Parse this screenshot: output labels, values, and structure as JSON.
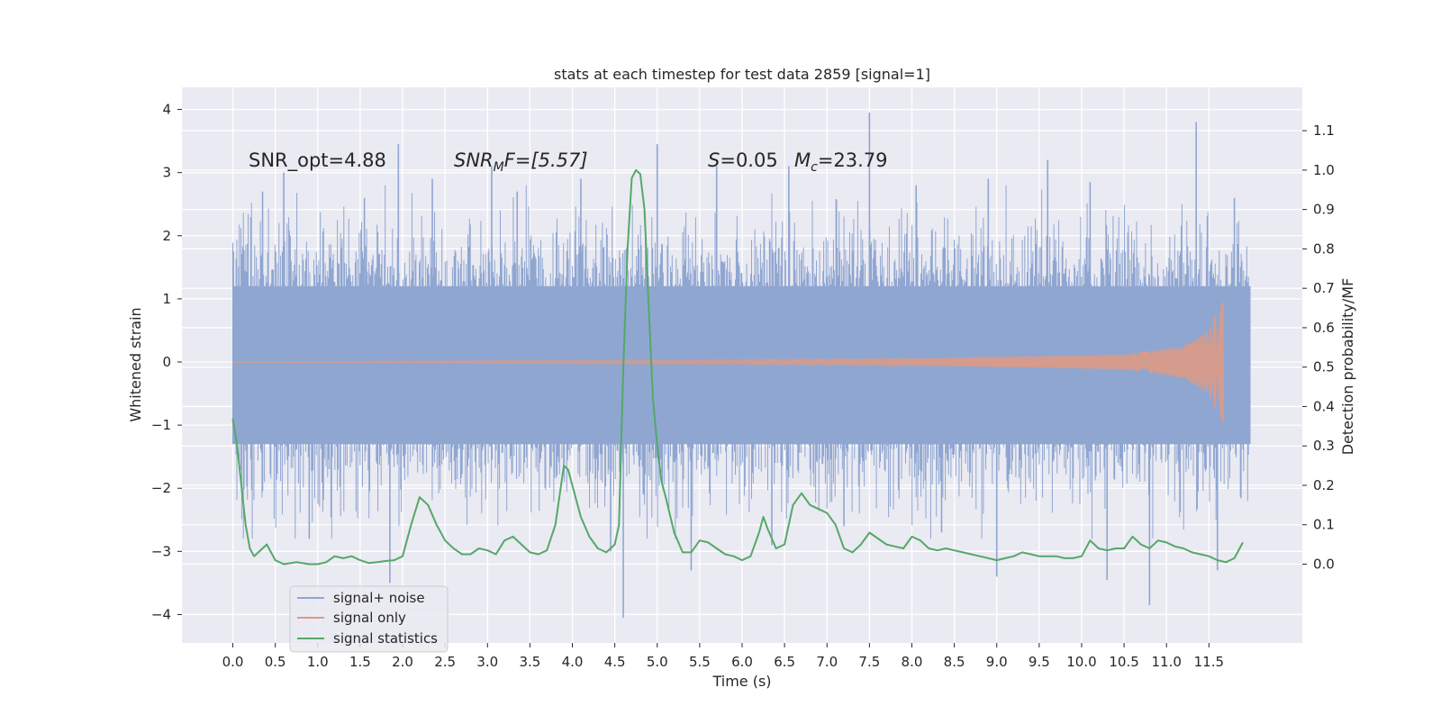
{
  "chart_data": {
    "type": "line",
    "title": "stats at each timestep for test data 2859 [signal=1]",
    "xlabel": "Time (s)",
    "ylabel_left": "Whitened strain",
    "ylabel_right": "Detection probability/MF",
    "xlim": [
      -0.6,
      12.6
    ],
    "ylim_left": [
      -4.45,
      4.35
    ],
    "ylim_right": [
      -0.2,
      1.21
    ],
    "x_ticks": [
      0.0,
      0.5,
      1.0,
      1.5,
      2.0,
      2.5,
      3.0,
      3.5,
      4.0,
      4.5,
      5.0,
      5.5,
      6.0,
      6.5,
      7.0,
      7.5,
      8.0,
      8.5,
      9.0,
      9.5,
      10.0,
      10.5,
      11.0,
      11.5
    ],
    "x_tick_labels": [
      "0.0",
      "0.5",
      "1.0",
      "1.5",
      "2.0",
      "2.5",
      "3.0",
      "3.5",
      "4.0",
      "4.5",
      "5.0",
      "5.5",
      "6.0",
      "6.5",
      "7.0",
      "7.5",
      "8.0",
      "8.5",
      "9.0",
      "9.5",
      "10.0",
      "10.5",
      "11.0",
      "11.5"
    ],
    "y_left_ticks": [
      -4,
      -3,
      -2,
      -1,
      0,
      1,
      2,
      3,
      4
    ],
    "y_left_tick_labels": [
      "−4",
      "−3",
      "−2",
      "−1",
      "0",
      "1",
      "2",
      "3",
      "4"
    ],
    "y_right_ticks": [
      0.0,
      0.1,
      0.2,
      0.3,
      0.4,
      0.5,
      0.6,
      0.7,
      0.8,
      0.9,
      1.0,
      1.1
    ],
    "y_right_tick_labels": [
      "0.0",
      "0.1",
      "0.2",
      "0.3",
      "0.4",
      "0.5",
      "0.6",
      "0.7",
      "0.8",
      "0.9",
      "1.0",
      "1.1"
    ],
    "grid": true,
    "legend_position": "lower-left",
    "annotations": [
      {
        "id": "snr-opt",
        "text": "SNR_opt=4.88"
      },
      {
        "id": "snr-mf",
        "base": "SNR",
        "sub": "M",
        "rest": "F=[5.57]"
      },
      {
        "id": "s-val",
        "base": "S",
        "rest": "=0.05"
      },
      {
        "id": "mc-val",
        "base": "M",
        "sub": "c",
        "rest": "=23.79"
      }
    ],
    "series": [
      {
        "name": "signal+ noise",
        "axis": "left",
        "color": "#8fa6d1",
        "t_range": [
          0.0,
          11.99
        ],
        "band_core": [
          -1.3,
          1.2
        ],
        "typical_extremes": [
          -2.4,
          2.4
        ],
        "spikes": [
          {
            "x": 0.35,
            "y": 2.7
          },
          {
            "x": 0.6,
            "y": 3.0
          },
          {
            "x": 0.9,
            "y": -2.8
          },
          {
            "x": 1.55,
            "y": 2.6
          },
          {
            "x": 1.95,
            "y": 3.45
          },
          {
            "x": 1.85,
            "y": -3.5
          },
          {
            "x": 2.35,
            "y": 2.9
          },
          {
            "x": 3.05,
            "y": 3.1
          },
          {
            "x": 3.35,
            "y": 2.7
          },
          {
            "x": 4.1,
            "y": 2.9
          },
          {
            "x": 4.6,
            "y": -4.05
          },
          {
            "x": 4.45,
            "y": -3.0
          },
          {
            "x": 5.0,
            "y": 3.45
          },
          {
            "x": 5.4,
            "y": -3.3
          },
          {
            "x": 5.7,
            "y": 3.1
          },
          {
            "x": 6.55,
            "y": 3.1
          },
          {
            "x": 6.35,
            "y": -2.9
          },
          {
            "x": 7.5,
            "y": 3.95
          },
          {
            "x": 7.2,
            "y": -2.6
          },
          {
            "x": 8.05,
            "y": 2.8
          },
          {
            "x": 8.35,
            "y": -2.7
          },
          {
            "x": 8.9,
            "y": 2.9
          },
          {
            "x": 9.0,
            "y": -3.4
          },
          {
            "x": 9.6,
            "y": 3.2
          },
          {
            "x": 10.1,
            "y": 2.85
          },
          {
            "x": 10.3,
            "y": -3.45
          },
          {
            "x": 10.8,
            "y": -3.85
          },
          {
            "x": 11.35,
            "y": 3.8
          },
          {
            "x": 11.6,
            "y": -3.3
          },
          {
            "x": 11.8,
            "y": 2.6
          }
        ]
      },
      {
        "name": "signal only",
        "axis": "left",
        "color": "#dd9a84",
        "description_points": [
          {
            "x": 0.0,
            "amp": 0.0
          },
          {
            "x": 8.0,
            "amp": 0.05
          },
          {
            "x": 10.5,
            "amp": 0.12
          },
          {
            "x": 11.2,
            "amp": 0.25
          },
          {
            "x": 11.5,
            "amp": 0.5
          },
          {
            "x": 11.65,
            "amp": 1.0
          }
        ],
        "t_end": 11.67
      },
      {
        "name": "signal statistics",
        "axis": "right",
        "color": "#55a868",
        "x": [
          0.0,
          0.05,
          0.1,
          0.15,
          0.2,
          0.25,
          0.3,
          0.4,
          0.5,
          0.6,
          0.75,
          0.9,
          1.0,
          1.1,
          1.2,
          1.3,
          1.4,
          1.5,
          1.6,
          1.7,
          1.8,
          1.9,
          2.0,
          2.1,
          2.2,
          2.3,
          2.4,
          2.5,
          2.6,
          2.7,
          2.8,
          2.9,
          3.0,
          3.1,
          3.2,
          3.3,
          3.4,
          3.5,
          3.6,
          3.7,
          3.8,
          3.9,
          3.95,
          4.0,
          4.1,
          4.2,
          4.3,
          4.4,
          4.5,
          4.55,
          4.6,
          4.65,
          4.7,
          4.75,
          4.8,
          4.85,
          4.9,
          4.95,
          5.0,
          5.05,
          5.1,
          5.2,
          5.3,
          5.4,
          5.5,
          5.6,
          5.7,
          5.8,
          5.9,
          6.0,
          6.1,
          6.2,
          6.25,
          6.3,
          6.4,
          6.5,
          6.6,
          6.7,
          6.8,
          6.9,
          7.0,
          7.1,
          7.2,
          7.3,
          7.4,
          7.5,
          7.6,
          7.7,
          7.8,
          7.9,
          8.0,
          8.1,
          8.2,
          8.3,
          8.4,
          8.5,
          8.6,
          8.7,
          8.8,
          8.9,
          9.0,
          9.1,
          9.2,
          9.3,
          9.4,
          9.5,
          9.6,
          9.7,
          9.8,
          9.9,
          10.0,
          10.1,
          10.2,
          10.3,
          10.4,
          10.5,
          10.6,
          10.7,
          10.8,
          10.9,
          11.0,
          11.1,
          11.2,
          11.3,
          11.4,
          11.5,
          11.6,
          11.7,
          11.8,
          11.9
        ],
        "y": [
          0.37,
          0.3,
          0.2,
          0.1,
          0.04,
          0.02,
          0.03,
          0.05,
          0.01,
          0.0,
          0.005,
          0.0,
          0.0,
          0.005,
          0.02,
          0.015,
          0.02,
          0.01,
          0.003,
          0.005,
          0.008,
          0.01,
          0.02,
          0.1,
          0.17,
          0.15,
          0.1,
          0.06,
          0.04,
          0.025,
          0.025,
          0.04,
          0.035,
          0.025,
          0.06,
          0.07,
          0.05,
          0.03,
          0.025,
          0.035,
          0.1,
          0.25,
          0.24,
          0.2,
          0.12,
          0.07,
          0.04,
          0.03,
          0.05,
          0.1,
          0.5,
          0.8,
          0.98,
          1.0,
          0.99,
          0.9,
          0.65,
          0.42,
          0.3,
          0.21,
          0.17,
          0.08,
          0.03,
          0.03,
          0.06,
          0.055,
          0.04,
          0.025,
          0.02,
          0.01,
          0.02,
          0.08,
          0.12,
          0.09,
          0.04,
          0.05,
          0.15,
          0.18,
          0.15,
          0.14,
          0.13,
          0.1,
          0.04,
          0.03,
          0.05,
          0.08,
          0.065,
          0.05,
          0.045,
          0.04,
          0.07,
          0.06,
          0.04,
          0.035,
          0.04,
          0.035,
          0.03,
          0.025,
          0.02,
          0.015,
          0.01,
          0.015,
          0.02,
          0.03,
          0.025,
          0.02,
          0.02,
          0.02,
          0.015,
          0.015,
          0.02,
          0.06,
          0.04,
          0.035,
          0.04,
          0.04,
          0.07,
          0.05,
          0.04,
          0.06,
          0.055,
          0.045,
          0.04,
          0.03,
          0.025,
          0.02,
          0.01,
          0.005,
          0.015,
          0.055
        ]
      }
    ]
  }
}
